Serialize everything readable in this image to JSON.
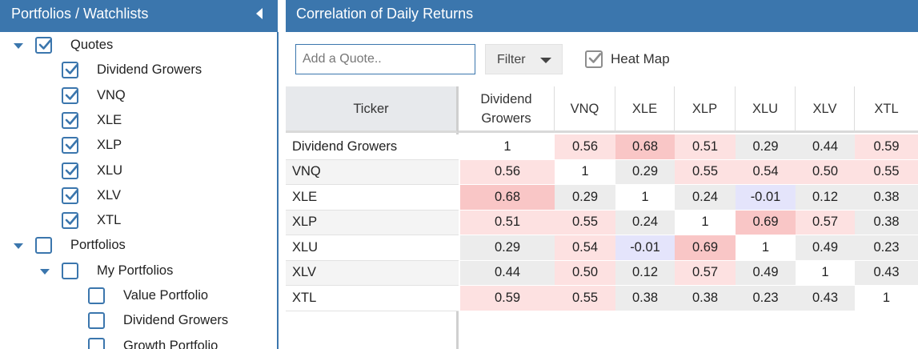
{
  "left_panel": {
    "title": "Portfolios / Watchlists",
    "collapse_icon": "chevron-left-icon",
    "tree": [
      {
        "label": "Quotes",
        "checked": true,
        "level": 0,
        "expandable": true
      },
      {
        "label": "Dividend Growers",
        "checked": true,
        "level": 1
      },
      {
        "label": "VNQ",
        "checked": true,
        "level": 1
      },
      {
        "label": "XLE",
        "checked": true,
        "level": 1
      },
      {
        "label": "XLP",
        "checked": true,
        "level": 1
      },
      {
        "label": "XLU",
        "checked": true,
        "level": 1
      },
      {
        "label": "XLV",
        "checked": true,
        "level": 1
      },
      {
        "label": "XTL",
        "checked": true,
        "level": 1
      },
      {
        "label": "Portfolios",
        "checked": false,
        "level": 0,
        "expandable": true
      },
      {
        "label": "My Portfolios",
        "checked": false,
        "level": 1,
        "expandable": true
      },
      {
        "label": "Value Portfolio",
        "checked": false,
        "level": 2
      },
      {
        "label": "Dividend Growers",
        "checked": false,
        "level": 2
      },
      {
        "label": "Growth Portfolio",
        "checked": false,
        "level": 2
      }
    ]
  },
  "right_panel": {
    "title": "Correlation of Daily Returns",
    "quote_input": {
      "placeholder": "Add a Quote..",
      "value": ""
    },
    "filter_label": "Filter",
    "heatmap_label": "Heat Map",
    "heatmap_checked": true
  },
  "table": {
    "ticker_header": "Ticker",
    "columns": [
      "Dividend Growers",
      "VNQ",
      "XLE",
      "XLP",
      "XLU",
      "XLV",
      "XTL"
    ],
    "rows": [
      {
        "ticker": "Dividend Growers",
        "values": [
          "1",
          "0.56",
          "0.68",
          "0.51",
          "0.29",
          "0.44",
          "0.59"
        ]
      },
      {
        "ticker": "VNQ",
        "values": [
          "0.56",
          "1",
          "0.29",
          "0.55",
          "0.54",
          "0.50",
          "0.55"
        ]
      },
      {
        "ticker": "XLE",
        "values": [
          "0.68",
          "0.29",
          "1",
          "0.24",
          "-0.01",
          "0.12",
          "0.38"
        ]
      },
      {
        "ticker": "XLP",
        "values": [
          "0.51",
          "0.55",
          "0.24",
          "1",
          "0.69",
          "0.57",
          "0.38"
        ]
      },
      {
        "ticker": "XLU",
        "values": [
          "0.29",
          "0.54",
          "-0.01",
          "0.69",
          "1",
          "0.49",
          "0.23"
        ]
      },
      {
        "ticker": "XLV",
        "values": [
          "0.44",
          "0.50",
          "0.12",
          "0.57",
          "0.49",
          "1",
          "0.43"
        ]
      },
      {
        "ticker": "XTL",
        "values": [
          "0.59",
          "0.55",
          "0.38",
          "0.38",
          "0.23",
          "0.43",
          "1"
        ]
      }
    ]
  },
  "colors": {
    "accent": "#3b76ad",
    "heat_high": "#f9c6c6",
    "heat_mid": "#fde1e1",
    "heat_low": "#ececec",
    "heat_negative": "#e4e4fb",
    "diagonal": "#ffffff"
  }
}
